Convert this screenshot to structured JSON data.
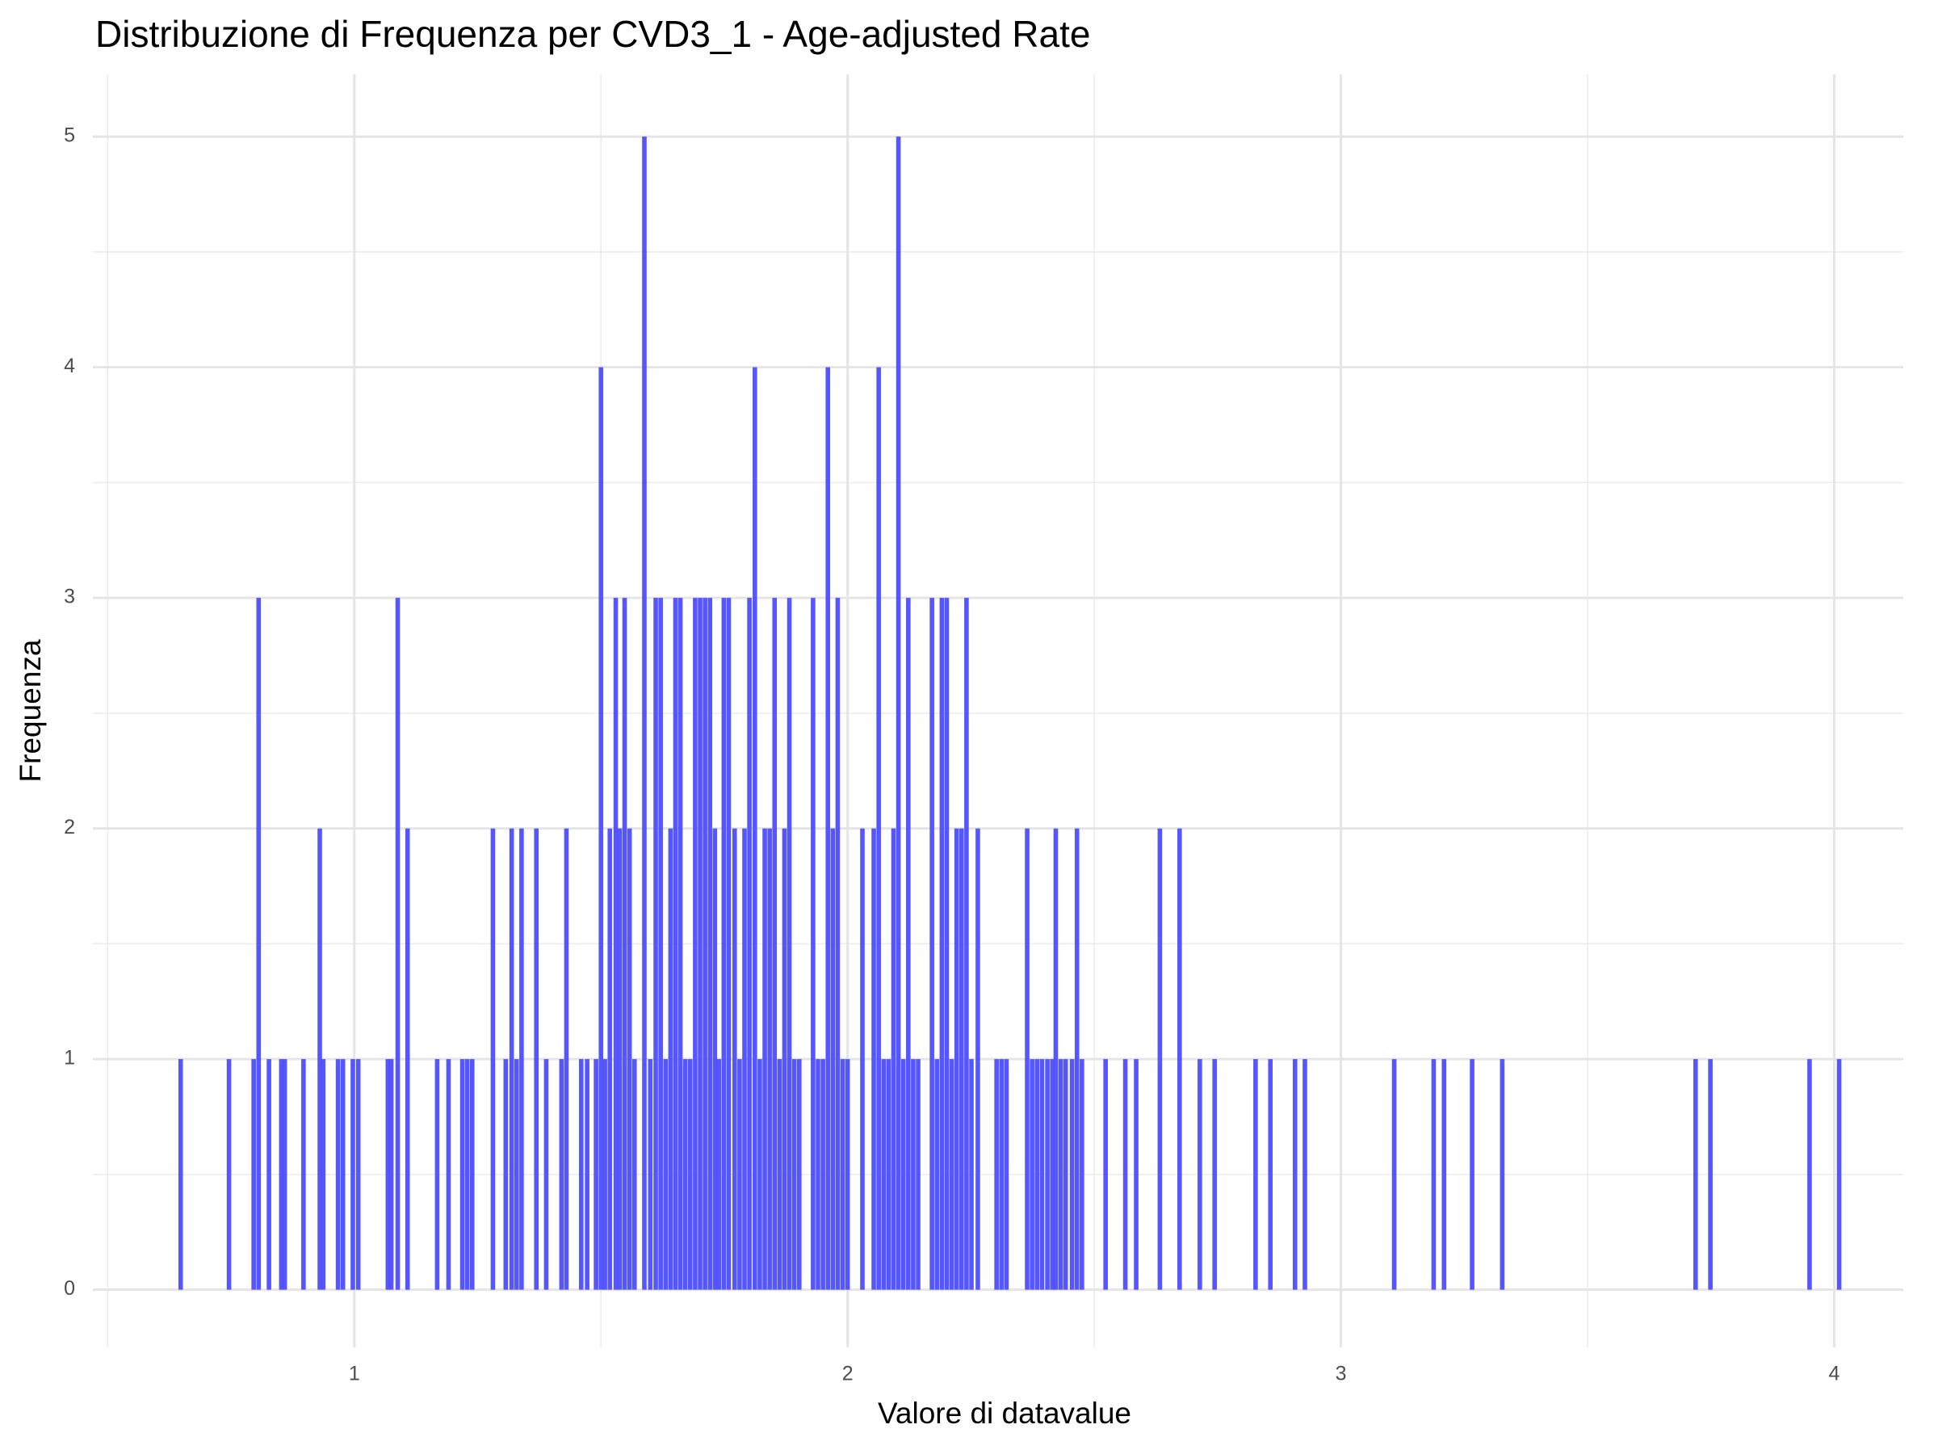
{
  "chart_data": {
    "type": "bar",
    "title": "Distribuzione di Frequenza per CVD3_1 - Age-adjusted Rate",
    "x_label": "Valore di datavalue",
    "y_label": "Frequenza",
    "color": "#4d4dff",
    "x": [
      0.648,
      0.746,
      0.796,
      0.806,
      0.827,
      0.852,
      0.859,
      0.897,
      0.93,
      0.937,
      0.967,
      0.977,
      0.997,
      1.008,
      1.068,
      1.075,
      1.088,
      1.108,
      1.168,
      1.191,
      1.219,
      1.229,
      1.239,
      1.281,
      1.307,
      1.319,
      1.329,
      1.339,
      1.369,
      1.389,
      1.42,
      1.43,
      1.46,
      1.472,
      1.49,
      1.5,
      1.508,
      1.518,
      1.53,
      1.538,
      1.548,
      1.558,
      1.568,
      1.588,
      1.6,
      1.611,
      1.621,
      1.631,
      1.641,
      1.651,
      1.661,
      1.671,
      1.681,
      1.691,
      1.701,
      1.711,
      1.721,
      1.731,
      1.739,
      1.749,
      1.759,
      1.771,
      1.781,
      1.791,
      1.801,
      1.812,
      1.822,
      1.832,
      1.842,
      1.852,
      1.862,
      1.872,
      1.882,
      1.892,
      1.902,
      1.93,
      1.94,
      1.95,
      1.96,
      1.97,
      1.98,
      1.99,
      2.0,
      2.03,
      2.053,
      2.063,
      2.073,
      2.083,
      2.093,
      2.103,
      2.113,
      2.123,
      2.133,
      2.143,
      2.171,
      2.181,
      2.191,
      2.201,
      2.211,
      2.221,
      2.231,
      2.241,
      2.251,
      2.264,
      2.302,
      2.312,
      2.322,
      2.364,
      2.374,
      2.384,
      2.394,
      2.405,
      2.415,
      2.422,
      2.432,
      2.442,
      2.455,
      2.465,
      2.475,
      2.523,
      2.563,
      2.585,
      2.633,
      2.673,
      2.714,
      2.744,
      2.827,
      2.857,
      2.907,
      2.927,
      3.108,
      3.188,
      3.209,
      3.266,
      3.327,
      3.719,
      3.749,
      3.95,
      4.01
    ],
    "values": [
      1,
      1,
      1,
      3,
      1,
      1,
      1,
      1,
      2,
      1,
      1,
      1,
      1,
      1,
      1,
      1,
      3,
      2,
      1,
      1,
      1,
      1,
      1,
      2,
      1,
      2,
      1,
      2,
      2,
      1,
      1,
      2,
      1,
      1,
      1,
      4,
      1,
      2,
      3,
      2,
      3,
      2,
      1,
      5,
      1,
      3,
      3,
      1,
      2,
      3,
      3,
      1,
      1,
      3,
      3,
      3,
      3,
      2,
      1,
      3,
      3,
      2,
      1,
      2,
      3,
      4,
      1,
      2,
      2,
      3,
      1,
      2,
      3,
      1,
      1,
      3,
      1,
      1,
      4,
      2,
      3,
      1,
      1,
      2,
      2,
      4,
      1,
      1,
      2,
      5,
      1,
      3,
      1,
      1,
      3,
      1,
      3,
      3,
      1,
      2,
      2,
      3,
      1,
      2,
      1,
      1,
      1,
      2,
      1,
      1,
      1,
      1,
      1,
      2,
      1,
      1,
      1,
      2,
      1,
      1,
      1,
      1,
      2,
      2,
      1,
      1,
      1,
      1,
      1,
      1,
      1,
      1,
      1,
      1,
      1,
      1,
      1,
      1,
      1
    ],
    "xlim": [
      0.47,
      4.14
    ],
    "xticks": [
      1,
      2,
      3,
      4
    ],
    "x_minor_grid": [
      0.5,
      1.5,
      2.5,
      3.5
    ],
    "ylim": [
      -0.25,
      5.27
    ],
    "yticks": [
      0,
      1,
      2,
      3,
      4,
      5
    ],
    "y_minor_grid": [
      0.5,
      1.5,
      2.5,
      3.5,
      4.5
    ],
    "grid": true
  }
}
